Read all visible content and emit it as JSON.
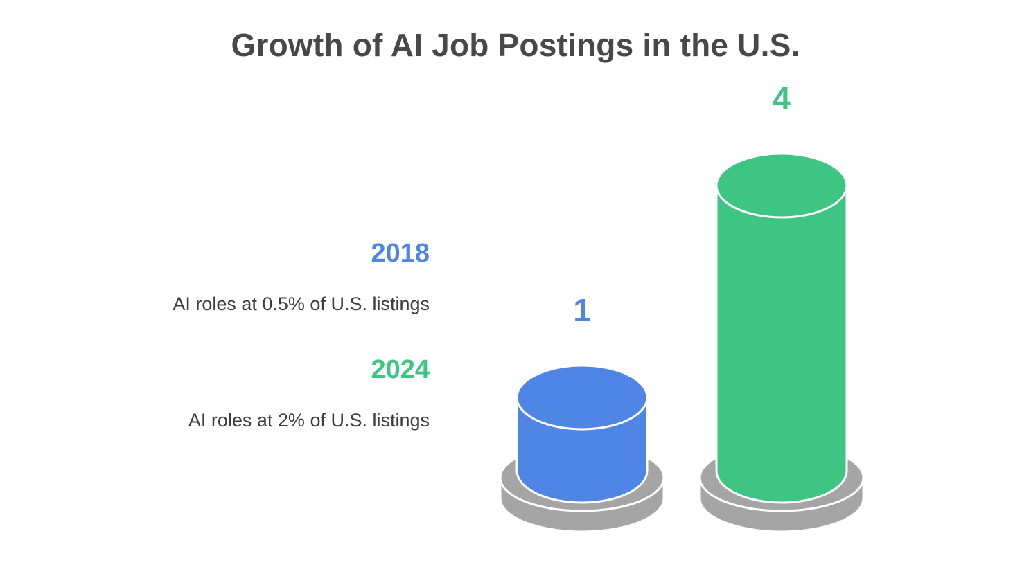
{
  "title": "Growth of AI Job Postings in the U.S.",
  "legend": [
    {
      "year": "2018",
      "description": "AI roles at 0.5% of U.S. listings",
      "color": "#4f86e6"
    },
    {
      "year": "2024",
      "description": "AI roles at 2% of U.S. listings",
      "color": "#3ec583"
    }
  ],
  "chart_data": {
    "type": "bar",
    "title": "Growth of AI Job Postings in the U.S.",
    "categories": [
      "2018",
      "2024"
    ],
    "values": [
      1,
      4
    ],
    "value_labels": [
      "1",
      "4"
    ],
    "colors": [
      "#4f86e6",
      "#3ec583"
    ],
    "pedestal_color": "#a5a5a5",
    "style": "3d-cylinder"
  }
}
